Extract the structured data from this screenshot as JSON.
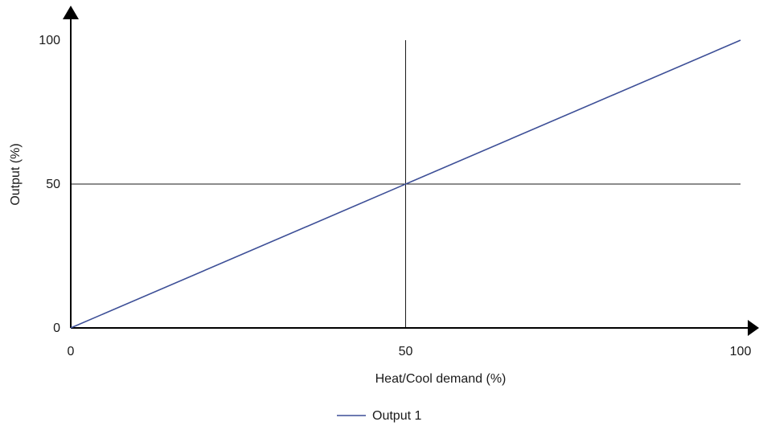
{
  "chart_data": {
    "type": "line",
    "title": "",
    "xlabel": "Heat/Cool demand (%)",
    "ylabel": "Output (%)",
    "xlim": [
      0,
      100
    ],
    "ylim": [
      0,
      100
    ],
    "x_ticks": [
      "0",
      "50",
      "100"
    ],
    "y_ticks": [
      "0",
      "50",
      "100"
    ],
    "grid": false,
    "reference_lines": [
      {
        "axis": "x",
        "value": 50
      },
      {
        "axis": "y",
        "value": 50
      }
    ],
    "legend": {
      "position": "bottom-center"
    },
    "series": [
      {
        "name": "Output 1",
        "x": [
          0,
          100
        ],
        "y": [
          0,
          100
        ],
        "color": "#3d4f97"
      }
    ]
  }
}
